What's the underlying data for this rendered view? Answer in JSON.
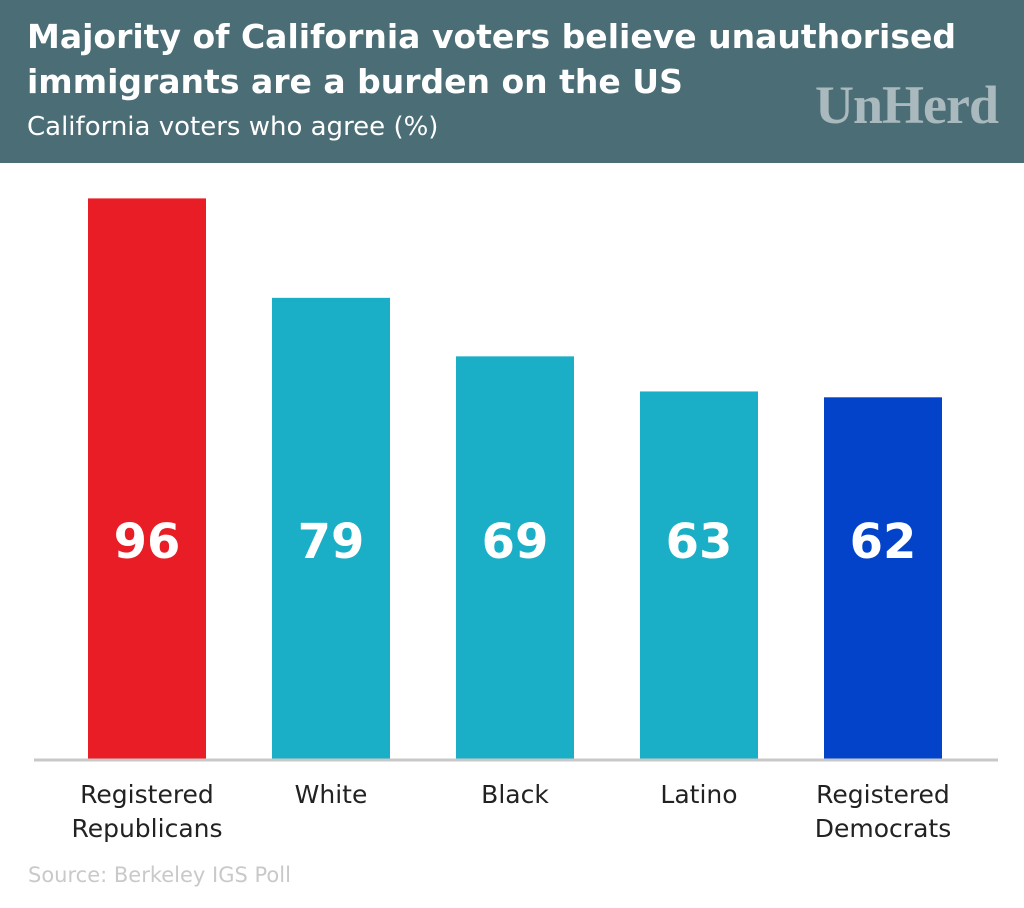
{
  "chart_data": {
    "type": "bar",
    "title": "Majority of California voters believe unauthorised immigrants are a burden on the US",
    "subtitle": "California voters who agree (%)",
    "logo": "UnHerd",
    "source": "Source: Berkeley IGS Poll",
    "categories": [
      "Registered Republicans",
      "White",
      "Black",
      "Latino",
      "Registered Democrats"
    ],
    "values": [
      96,
      79,
      69,
      63,
      62
    ],
    "colors": [
      "#e81d25",
      "#1aafc6",
      "#1aafc6",
      "#1aafc6",
      "#0243c9"
    ],
    "ylim": [
      0,
      100
    ]
  }
}
